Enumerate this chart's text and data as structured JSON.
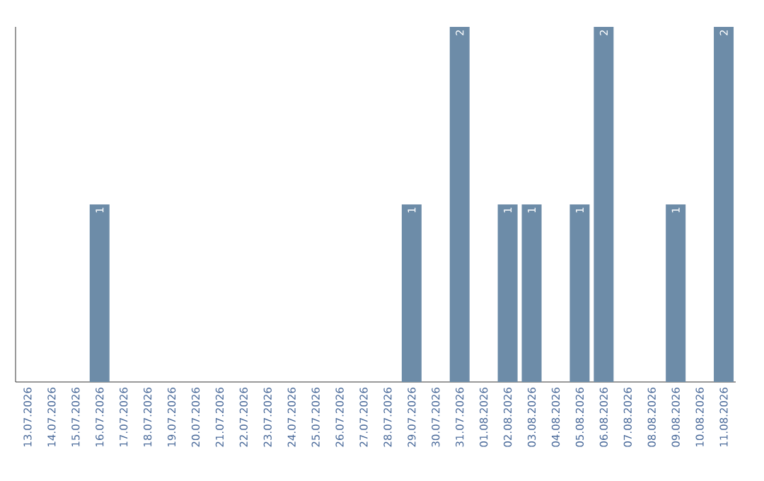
{
  "chart_data": {
    "type": "bar",
    "categories": [
      "13.07.2026",
      "14.07.2026",
      "15.07.2026",
      "16.07.2026",
      "17.07.2026",
      "18.07.2026",
      "19.07.2026",
      "20.07.2026",
      "21.07.2026",
      "22.07.2026",
      "23.07.2026",
      "24.07.2026",
      "25.07.2026",
      "26.07.2026",
      "27.07.2026",
      "28.07.2026",
      "29.07.2026",
      "30.07.2026",
      "31.07.2026",
      "01.08.2026",
      "02.08.2026",
      "03.08.2026",
      "04.08.2026",
      "05.08.2026",
      "06.08.2026",
      "07.08.2026",
      "08.08.2026",
      "09.08.2026",
      "10.08.2026",
      "11.08.2026"
    ],
    "values": [
      0,
      0,
      0,
      1,
      0,
      0,
      0,
      0,
      0,
      0,
      0,
      0,
      0,
      0,
      0,
      0,
      1,
      0,
      2,
      0,
      1,
      1,
      0,
      1,
      2,
      0,
      0,
      1,
      0,
      2
    ],
    "value_labels": [
      null,
      null,
      null,
      "1",
      null,
      null,
      null,
      null,
      null,
      null,
      null,
      null,
      null,
      null,
      null,
      null,
      "1",
      null,
      "2",
      null,
      "1",
      "1",
      null,
      "1",
      "2",
      null,
      null,
      "1",
      null,
      "2"
    ],
    "color": "#6d8ca8",
    "ylim": [
      0,
      2
    ],
    "tick_labels": "x"
  }
}
